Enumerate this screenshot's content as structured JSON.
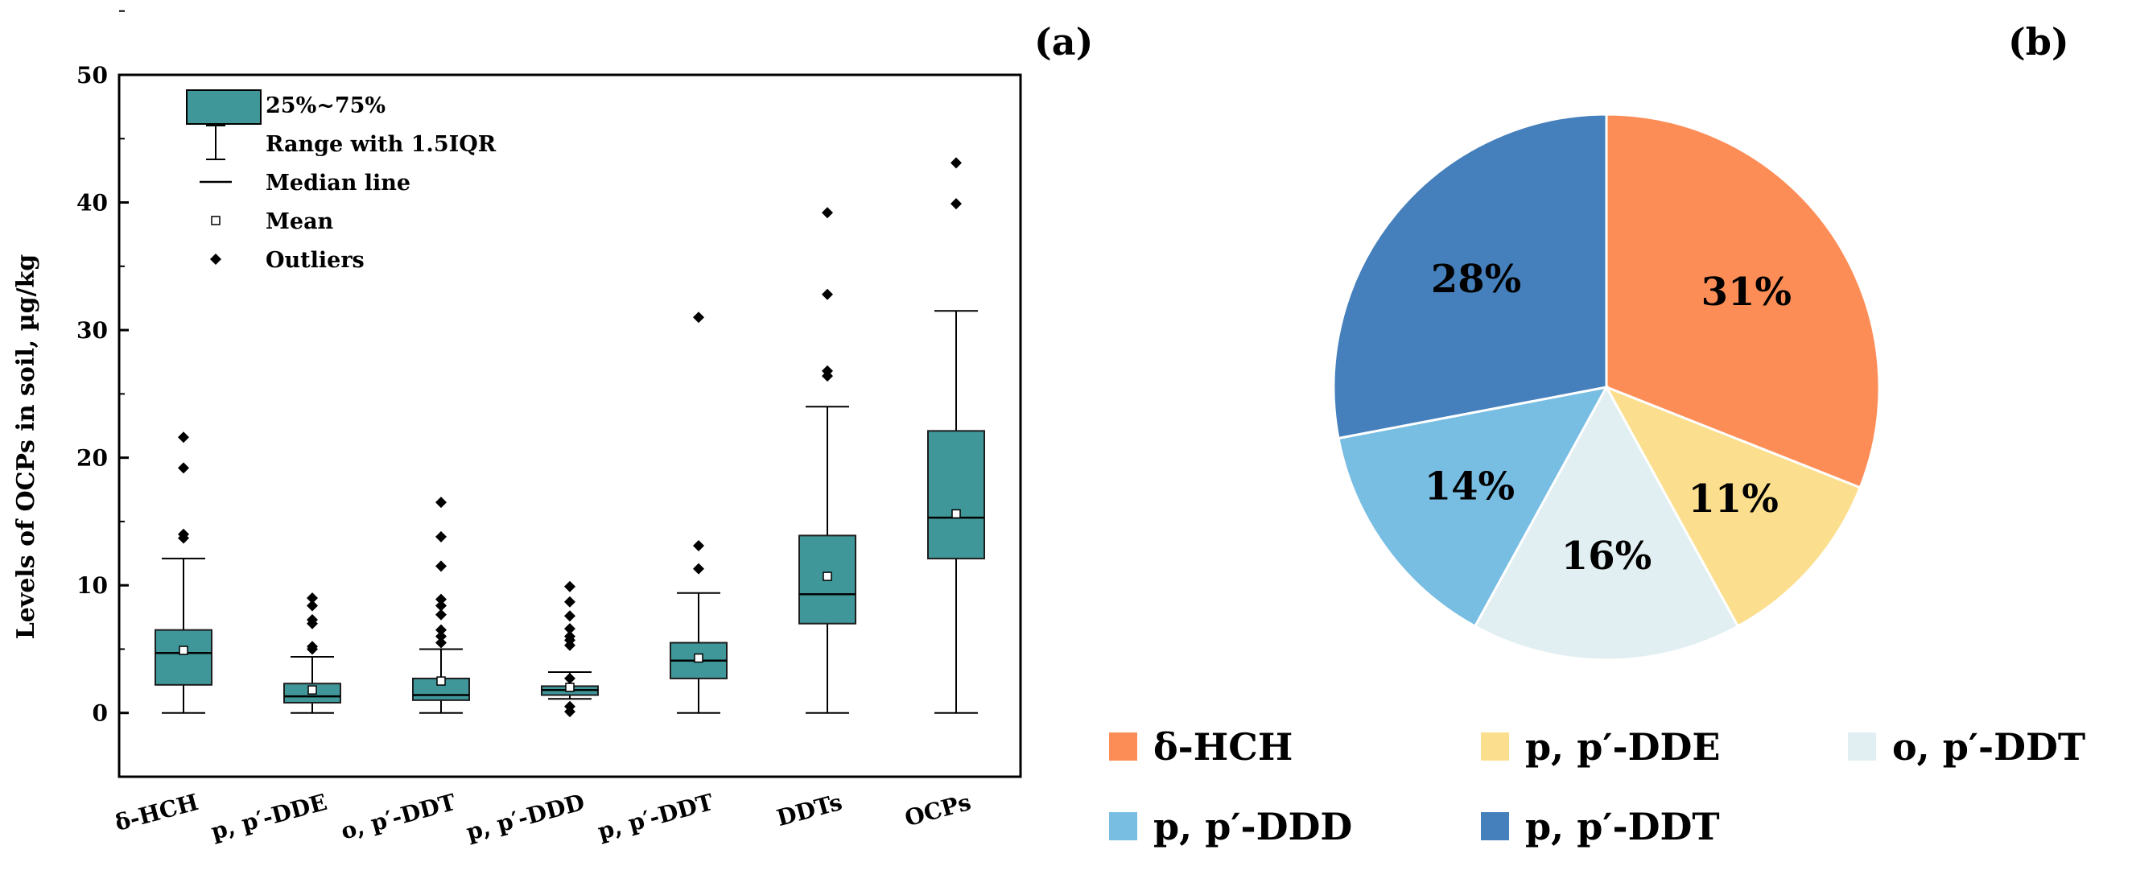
{
  "chart_data": [
    {
      "type": "boxplot",
      "panel_label": "(a)",
      "ylabel": "Levels of OCPs in soil, µg/kg",
      "ylim": [
        -5,
        50
      ],
      "yticks": [
        0,
        10,
        20,
        30,
        40,
        50
      ],
      "legend": {
        "position": "top-left",
        "items": [
          {
            "kind": "box",
            "label": "25%~75%"
          },
          {
            "kind": "whisker",
            "label": "Range with 1.5IQR"
          },
          {
            "kind": "median",
            "label": "Median line"
          },
          {
            "kind": "mean",
            "label": "Mean"
          },
          {
            "kind": "outlier",
            "label": "Outliers"
          }
        ]
      },
      "categories": [
        "δ-HCH",
        "p, p′-DDE",
        "o, p′-DDT",
        "p, p′-DDD",
        "p, p′-DDT",
        "DDTs",
        "OCPs"
      ],
      "boxes": [
        {
          "q1": 2.2,
          "q3": 6.5,
          "median": 4.7,
          "mean": 4.9,
          "whisker_low": 0,
          "whisker_high": 12.1,
          "outliers": [
            13.7,
            14.0,
            19.2,
            21.6
          ]
        },
        {
          "q1": 0.8,
          "q3": 2.3,
          "median": 1.3,
          "mean": 1.8,
          "whisker_low": 0,
          "whisker_high": 4.4,
          "outliers": [
            5.0,
            5.2,
            7.0,
            7.3,
            8.4,
            9.0
          ]
        },
        {
          "q1": 1.0,
          "q3": 2.7,
          "median": 1.4,
          "mean": 2.5,
          "whisker_low": 0,
          "whisker_high": 5.0,
          "outliers": [
            5.5,
            6.0,
            6.5,
            7.7,
            8.4,
            8.9,
            11.5,
            13.8,
            16.5
          ]
        },
        {
          "q1": 1.4,
          "q3": 2.1,
          "median": 1.8,
          "mean": 2.0,
          "whisker_low": 1.1,
          "whisker_high": 3.2,
          "outliers": [
            0.1,
            0.5,
            2.7,
            5.3,
            5.7,
            6.0,
            6.6,
            7.6,
            8.7,
            9.9
          ]
        },
        {
          "q1": 2.7,
          "q3": 5.5,
          "median": 4.1,
          "mean": 4.3,
          "whisker_low": 0,
          "whisker_high": 9.4,
          "outliers": [
            11.3,
            13.1,
            31.0
          ]
        },
        {
          "q1": 7.0,
          "q3": 13.9,
          "median": 9.3,
          "mean": 10.7,
          "whisker_low": 0,
          "whisker_high": 24.0,
          "outliers": [
            26.4,
            26.8,
            32.8,
            39.2
          ]
        },
        {
          "q1": 12.1,
          "q3": 22.1,
          "median": 15.3,
          "mean": 15.6,
          "whisker_low": 0,
          "whisker_high": 31.5,
          "outliers": [
            39.9,
            43.1
          ]
        }
      ]
    },
    {
      "type": "pie",
      "panel_label": "(b)",
      "slices": [
        {
          "label": "δ-HCH",
          "value": 31,
          "text": "31%",
          "color": "#FD8D57"
        },
        {
          "label": "p, p′-DDE",
          "value": 11,
          "text": "11%",
          "color": "#FCDF8E"
        },
        {
          "label": "o, p′-DDT",
          "value": 16,
          "text": "16%",
          "color": "#E2EFF2"
        },
        {
          "label": "p, p′-DDD",
          "value": 14,
          "text": "14%",
          "color": "#78BDE2"
        },
        {
          "label": "p, p′-DDT",
          "value": 28,
          "text": "28%",
          "color": "#4580BC"
        }
      ],
      "legend_position": "bottom"
    }
  ],
  "colors": {
    "box_fill": "#40979A",
    "box_stroke": "#1d1d1d",
    "pie_separator": "#ffffff"
  }
}
